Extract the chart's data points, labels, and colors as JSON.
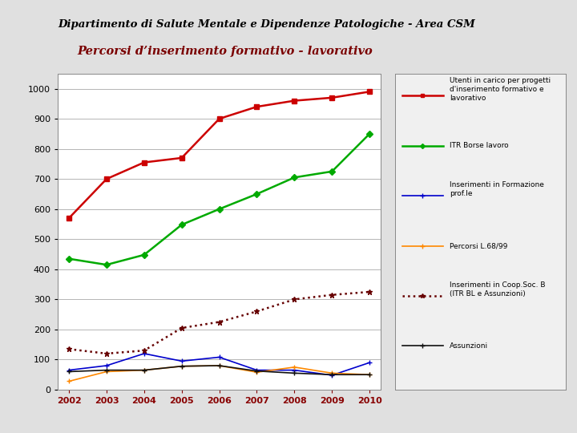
{
  "title1": "Dipartimento di Salute Mentale e Dipendenze Patologiche - Area CSM",
  "title2": "Percorsi d’inserimento formativo - lavorativo",
  "years": [
    2002,
    2003,
    2004,
    2005,
    2006,
    2007,
    2008,
    2009,
    2010
  ],
  "series": [
    {
      "key": "utenti",
      "label": "Utenti in carico per progetti\nd'inserimento formativo e\nlavorativo",
      "color": "#cc0000",
      "linestyle": "-",
      "marker": "s",
      "markersize": 4,
      "linewidth": 1.8,
      "values": [
        570,
        700,
        755,
        770,
        900,
        940,
        960,
        970,
        990
      ]
    },
    {
      "key": "itr_borse",
      "label": "ITR Borse lavoro",
      "color": "#00aa00",
      "linestyle": "-",
      "marker": "D",
      "markersize": 4,
      "linewidth": 1.8,
      "values": [
        435,
        415,
        448,
        548,
        600,
        650,
        705,
        725,
        850
      ]
    },
    {
      "key": "inserimenti_form",
      "label": "Inserimenti in Formazione\nprof.le",
      "color": "#0000cc",
      "linestyle": "-",
      "marker": "+",
      "markersize": 5,
      "linewidth": 1.2,
      "values": [
        65,
        80,
        120,
        95,
        108,
        65,
        65,
        48,
        90
      ]
    },
    {
      "key": "percorsi",
      "label": "Percorsi L.68/99",
      "color": "#ff8800",
      "linestyle": "-",
      "marker": "+",
      "markersize": 5,
      "linewidth": 1.2,
      "values": [
        28,
        60,
        65,
        78,
        80,
        58,
        75,
        55,
        50
      ]
    },
    {
      "key": "inserimenti_coop",
      "label": "Inserimenti in Coop.Soc. B\n(ITR BL e Assunzioni)",
      "color": "#660000",
      "linestyle": ":",
      "marker": "*",
      "markersize": 5,
      "linewidth": 1.8,
      "values": [
        135,
        120,
        130,
        205,
        225,
        260,
        300,
        315,
        325
      ]
    },
    {
      "key": "assunzioni",
      "label": "Assunzioni",
      "color": "#111111",
      "linestyle": "-",
      "marker": "+",
      "markersize": 5,
      "linewidth": 1.2,
      "values": [
        60,
        65,
        65,
        78,
        80,
        62,
        55,
        50,
        50
      ]
    }
  ],
  "ylim": [
    0,
    1050
  ],
  "yticks": [
    0,
    100,
    200,
    300,
    400,
    500,
    600,
    700,
    800,
    900,
    1000
  ],
  "background_color": "#e0e0e0",
  "plot_bg_color": "#ffffff",
  "title1_color": "#000000",
  "title2_color": "#7a0000",
  "title1_fontsize": 9.5,
  "title2_fontsize": 10.5,
  "axis_label_color": "#880000",
  "tick_fontsize": 8,
  "legend_fontsize": 6.5
}
